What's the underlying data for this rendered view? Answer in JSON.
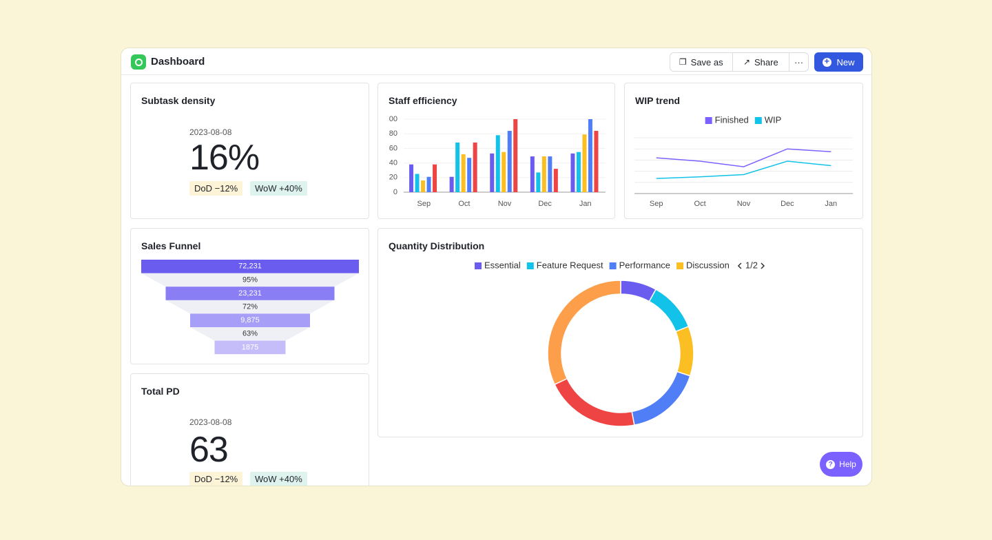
{
  "header": {
    "title": "Dashboard",
    "buttons": [
      "Save as",
      "Share"
    ],
    "new_button": "New"
  },
  "kpis": [
    {
      "title": "Subtask density",
      "date": "2023-08-08",
      "value": "16%",
      "badges": [
        "DoD −12%",
        "WoW +40%"
      ]
    },
    {
      "title": "Total PD",
      "date": "2023-08-08",
      "value": "63",
      "badges": [
        "DoD −12%",
        "WoW +40%"
      ]
    }
  ],
  "chart_data": [
    {
      "type": "bar",
      "title": "Staff efficiency",
      "categories": [
        "Sep",
        "Oct",
        "Nov",
        "Dec",
        "Jan"
      ],
      "series": [
        {
          "color": "#6b5cf0",
          "values": [
            38,
            21,
            53,
            49,
            53
          ]
        },
        {
          "color": "#12c2e9",
          "values": [
            25,
            68,
            78,
            27,
            55
          ]
        },
        {
          "color": "#fbbf24",
          "values": [
            16,
            52,
            55,
            49,
            79
          ]
        },
        {
          "color": "#4f7ef7",
          "values": [
            21,
            47,
            84,
            49,
            100
          ]
        },
        {
          "color": "#ef4444",
          "values": [
            38,
            68,
            100,
            32,
            84
          ]
        }
      ],
      "ylim": [
        0,
        100
      ],
      "yticks": [
        0,
        20,
        40,
        60,
        80,
        {
          "value": 100,
          "label": "00"
        }
      ],
      "grid": true
    },
    {
      "type": "line",
      "title": "WIP trend",
      "categories": [
        "Sep",
        "Oct",
        "Nov",
        "Dec",
        "Jan"
      ],
      "series": [
        {
          "name": "Finished",
          "color": "#7b61ff",
          "values": [
            64,
            58,
            48,
            80,
            75
          ]
        },
        {
          "name": "WIP",
          "color": "#12c2e9",
          "values": [
            27,
            30,
            34,
            58,
            50
          ]
        }
      ],
      "ylim": [
        0,
        100
      ],
      "grid": true
    },
    {
      "type": "pie",
      "title": "Quantity Distribution",
      "categories": [
        "Essential",
        "Feature Request",
        "Discussion",
        "Performance",
        null,
        null
      ],
      "values": [
        8,
        11,
        11,
        17,
        21,
        32
      ],
      "colors": [
        "#6b5cf0",
        "#12c2e9",
        "#fbbf24",
        "#4f7ef7",
        "#ef4444",
        "#fd9e4a"
      ],
      "legend_page": "1/2"
    },
    {
      "type": "funnel",
      "title": "Sales Funnel",
      "values": [
        72231,
        23231,
        9875,
        1875
      ],
      "value_labels": [
        "72,231",
        "23,231",
        "9,875",
        "1875"
      ],
      "rates": [
        95,
        72,
        63
      ],
      "rate_labels": [
        "95%",
        "72%",
        "63%"
      ],
      "colors": [
        "#6b5cf0",
        "#8a7ef4",
        "#a69ef7",
        "#c4bdfa"
      ]
    }
  ],
  "help": "Help"
}
